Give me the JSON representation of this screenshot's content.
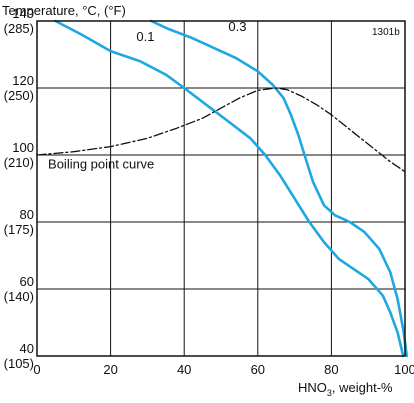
{
  "chart_data": {
    "type": "line",
    "title": "",
    "ylabel": "Temperature, °C, (°F)",
    "xlabel_main": "HNO",
    "xlabel_sub": "3",
    "xlabel_tail": ", weight-%",
    "figure_id": "1301b",
    "xlim": [
      0,
      100
    ],
    "ylim": [
      40,
      140
    ],
    "x_ticks": [
      {
        "value": 0,
        "label": "0"
      },
      {
        "value": 20,
        "label": "20"
      },
      {
        "value": 40,
        "label": "40"
      },
      {
        "value": 60,
        "label": "60"
      },
      {
        "value": 80,
        "label": "80"
      },
      {
        "value": 100,
        "label": "100"
      }
    ],
    "y_ticks": [
      {
        "value": 140,
        "label": "140",
        "label2": "(285)"
      },
      {
        "value": 120,
        "label": "120",
        "label2": "(250)"
      },
      {
        "value": 100,
        "label": "100",
        "label2": "(210)"
      },
      {
        "value": 80,
        "label": "80",
        "label2": "(175)"
      },
      {
        "value": 60,
        "label": "60",
        "label2": "(140)"
      },
      {
        "value": 40,
        "label": "40",
        "label2": "(105)"
      }
    ],
    "grid": true,
    "series": [
      {
        "name": "0.1",
        "color": "#1ea7e1",
        "style": "solid",
        "label_at": [
          27,
          134
        ],
        "x": [
          5,
          12,
          20,
          28,
          35,
          40,
          46,
          52,
          58,
          62,
          66,
          70,
          74,
          78,
          82,
          86,
          90,
          94,
          96,
          98,
          99.5
        ],
        "y": [
          140,
          136,
          131,
          128,
          124,
          120,
          115,
          110,
          105,
          100,
          94,
          87,
          80,
          74,
          69,
          66,
          63,
          58,
          53,
          47,
          40
        ]
      },
      {
        "name": "0.3",
        "color": "#1ea7e1",
        "style": "solid",
        "label_at": [
          52,
          137
        ],
        "x": [
          31,
          36,
          42,
          48,
          54,
          60,
          64,
          67,
          69,
          71,
          73,
          75,
          78,
          81,
          85,
          89,
          93,
          96,
          98,
          99.5,
          100.5
        ],
        "y": [
          140,
          137.5,
          135,
          132,
          129,
          125,
          121,
          117,
          112,
          106,
          99,
          92,
          85,
          82,
          80,
          77,
          72,
          65,
          57,
          48,
          40
        ]
      },
      {
        "name": "Boiling point curve",
        "color": "#111111",
        "style": "dashdot",
        "label_at": [
          3,
          96
        ],
        "x": [
          0,
          10,
          20,
          30,
          38,
          45,
          50,
          55,
          60,
          65,
          68,
          72,
          76,
          80,
          84,
          88,
          92,
          96,
          100
        ],
        "y": [
          100,
          101,
          102.5,
          105,
          108,
          111,
          114,
          117,
          119.3,
          120,
          119.5,
          117.5,
          115,
          112,
          108.5,
          105,
          101.5,
          98,
          95
        ]
      }
    ]
  }
}
